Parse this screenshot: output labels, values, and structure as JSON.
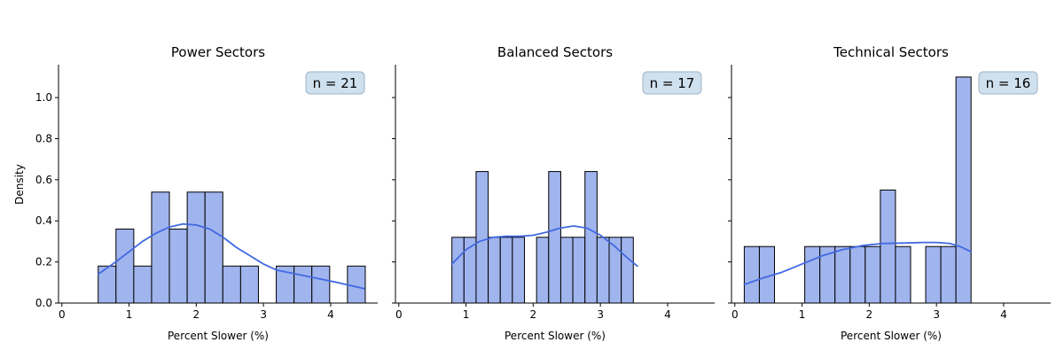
{
  "figure": {
    "ylabel": "Density",
    "background": "#ffffff"
  },
  "style": {
    "bar_fill": "#a0b4ee",
    "bar_stroke": "#000000",
    "kde_color": "#4169e1",
    "badge_fill": "#cfe0ee",
    "badge_stroke": "#9db3c6"
  },
  "chart_data": [
    {
      "type": "bar",
      "title": "Power Sectors",
      "xlabel": "Percent Slower (%)",
      "ylabel": "Density",
      "badge": "n = 21",
      "xlim": [
        -0.05,
        4.7
      ],
      "ylim": [
        0,
        1.16
      ],
      "xticks": [
        "0",
        "1",
        "2",
        "3",
        "4"
      ],
      "xtick_values": [
        0,
        1,
        2,
        3,
        4
      ],
      "yticks": [
        "0.0",
        "0.2",
        "0.4",
        "0.6",
        "0.8",
        "1.0"
      ],
      "ytick_values": [
        0,
        0.2,
        0.4,
        0.6,
        0.8,
        1.0
      ],
      "bin_edges": [
        0.54,
        0.805,
        1.07,
        1.335,
        1.6,
        1.865,
        2.13,
        2.395,
        2.66,
        2.925,
        3.19,
        3.455,
        3.72,
        3.985,
        4.25,
        4.515
      ],
      "values": [
        0.18,
        0.36,
        0.18,
        0.54,
        0.36,
        0.54,
        0.54,
        0.18,
        0.18,
        0,
        0.18,
        0.18,
        0.18,
        0,
        0.18
      ],
      "kde": {
        "x": [
          0.54,
          0.8,
          1.0,
          1.2,
          1.4,
          1.6,
          1.8,
          2.0,
          2.2,
          2.4,
          2.6,
          2.8,
          3.0,
          3.2,
          3.5,
          3.8,
          4.1,
          4.5
        ],
        "y": [
          0.14,
          0.2,
          0.25,
          0.3,
          0.34,
          0.37,
          0.385,
          0.38,
          0.36,
          0.32,
          0.27,
          0.23,
          0.19,
          0.16,
          0.14,
          0.12,
          0.1,
          0.07
        ]
      }
    },
    {
      "type": "bar",
      "title": "Balanced Sectors",
      "xlabel": "Percent Slower (%)",
      "badge": "n = 17",
      "xlim": [
        -0.05,
        4.7
      ],
      "ylim": [
        0,
        1.16
      ],
      "xticks": [
        "0",
        "1",
        "2",
        "3",
        "4"
      ],
      "xtick_values": [
        0,
        1,
        2,
        3,
        4
      ],
      "bin_edges": [
        0.79,
        0.97,
        1.15,
        1.33,
        1.51,
        1.69,
        1.87,
        2.05,
        2.23,
        2.41,
        2.59,
        2.77,
        2.95,
        3.13,
        3.31,
        3.49
      ],
      "values": [
        0.32,
        0.32,
        0.64,
        0.32,
        0.32,
        0.32,
        0,
        0.32,
        0.64,
        0.32,
        0.32,
        0.64,
        0.32,
        0.32,
        0.32
      ],
      "kde": {
        "x": [
          0.79,
          1.0,
          1.2,
          1.4,
          1.6,
          1.8,
          2.0,
          2.2,
          2.4,
          2.6,
          2.8,
          3.0,
          3.2,
          3.4,
          3.55
        ],
        "y": [
          0.19,
          0.26,
          0.3,
          0.32,
          0.325,
          0.325,
          0.33,
          0.345,
          0.365,
          0.375,
          0.365,
          0.33,
          0.28,
          0.22,
          0.18
        ]
      }
    },
    {
      "type": "bar",
      "title": "Technical Sectors",
      "xlabel": "Percent Slower (%)",
      "badge": "n = 16",
      "xlim": [
        -0.05,
        4.7
      ],
      "ylim": [
        0,
        1.16
      ],
      "xticks": [
        "0",
        "1",
        "2",
        "3",
        "4"
      ],
      "xtick_values": [
        0,
        1,
        2,
        3,
        4
      ],
      "bin_edges": [
        0.14,
        0.365,
        0.59,
        0.815,
        1.04,
        1.265,
        1.49,
        1.715,
        1.94,
        2.165,
        2.39,
        2.615,
        2.84,
        3.065,
        3.29,
        3.515
      ],
      "values": [
        0.275,
        0.275,
        0,
        0,
        0.275,
        0.275,
        0.275,
        0.275,
        0.275,
        0.55,
        0.275,
        0,
        0.275,
        0.275,
        1.1
      ],
      "kde": {
        "x": [
          0.14,
          0.4,
          0.7,
          1.0,
          1.3,
          1.6,
          1.9,
          2.2,
          2.5,
          2.8,
          3.0,
          3.2,
          3.35,
          3.515
        ],
        "y": [
          0.09,
          0.12,
          0.15,
          0.19,
          0.23,
          0.26,
          0.28,
          0.29,
          0.292,
          0.295,
          0.295,
          0.29,
          0.275,
          0.25
        ]
      }
    }
  ]
}
